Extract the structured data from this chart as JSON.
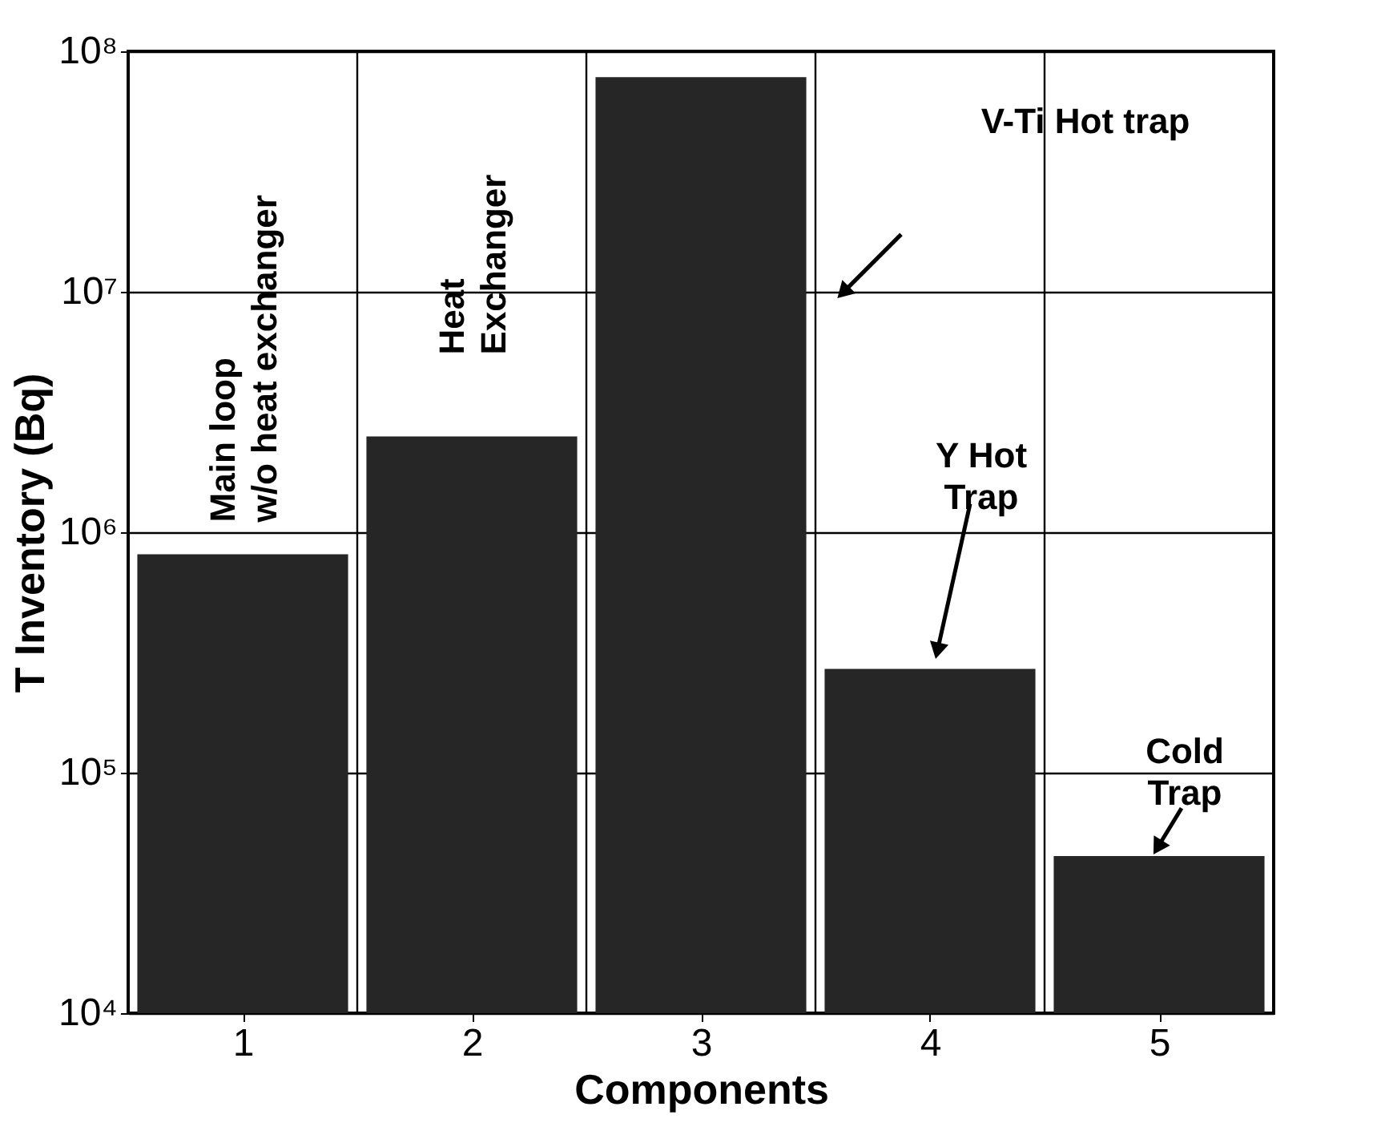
{
  "chart_data": {
    "type": "bar",
    "xlabel": "Components",
    "ylabel": "T Inventory (Bq)",
    "categories": [
      "1",
      "2",
      "3",
      "4",
      "5"
    ],
    "values": [
      810000,
      2500000,
      78000000,
      270000,
      45000
    ],
    "color": "#262626",
    "log": "y",
    "grid": true,
    "ylim": [
      10000,
      100000000
    ],
    "yticks": [
      {
        "value": 10000,
        "label": "10⁴"
      },
      {
        "value": 100000,
        "label": "10⁵"
      },
      {
        "value": 1000000,
        "label": "10⁶"
      },
      {
        "value": 10000000,
        "label": "10⁷"
      },
      {
        "value": 100000000,
        "label": "10⁸"
      }
    ],
    "annotations": [
      "Main loop\nw/o heat exchanger",
      "Heat\nExchanger",
      "V-Ti Hot trap",
      "Y Hot\nTrap",
      {
        "text": "Cold\nTrap",
        "x": "5",
        "y": 50000
      }
    ]
  }
}
